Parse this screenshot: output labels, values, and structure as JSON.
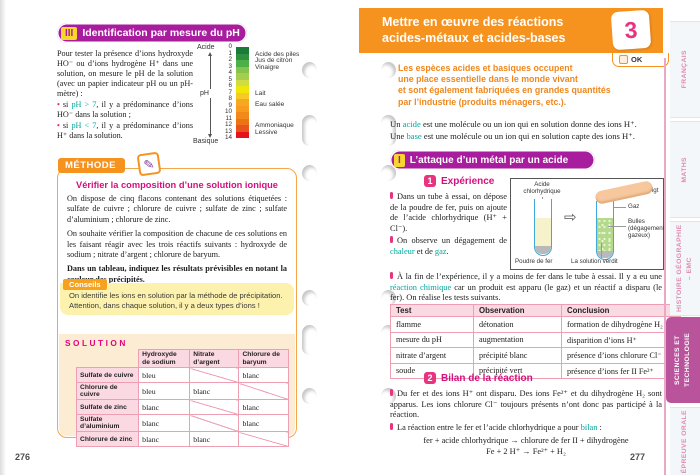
{
  "icons": {
    "transform_arrow": "⇨",
    "pencil": "✎"
  },
  "colors": {
    "accent_orange": "#f6921e",
    "accent_magenta": "#a81c9e",
    "accent_pink": "#e8337f",
    "accent_teal": "#00a79b",
    "tab_active": "#b9539b"
  },
  "tabs": [
    {
      "label": "FRANÇAIS",
      "active": false
    },
    {
      "label": "MATHS",
      "active": false
    },
    {
      "label": "HISTOIRE GÉOGRAPHIE – EMC",
      "active": false
    },
    {
      "label": "SCIENCES ET TECHNOLOGIE",
      "active": true
    },
    {
      "label": "ÉPREUVE ORALE",
      "active": false
    }
  ],
  "left_page": {
    "page_number": "276",
    "section": {
      "numeral": "III",
      "title": "Identification par mesure du pH"
    },
    "intro": {
      "para": [
        {
          "t": "Pour tester la présence d’ions hydroxyde HO⁻ ou d’ions hydrogène H⁺ dans une solution, on mesure le pH de la solution (avec un papier indicateur pH ou un pH-mètre) :"
        }
      ],
      "bullet1": [
        {
          "t": "si "
        },
        {
          "t": "pH > 7",
          "c": "teal"
        },
        {
          "t": ", il y a prédominance d’ions HO⁻ dans la solution ;"
        }
      ],
      "bullet2": [
        {
          "t": "si "
        },
        {
          "t": "pH < 7",
          "c": "teal"
        },
        {
          "t": ", il y a prédominance d’ions H⁺ dans la solution."
        }
      ]
    },
    "ph_scale": {
      "top_label": "Acide",
      "axis_label": "pH",
      "bottom_label": "Basique",
      "numbers": [
        "0",
        "1",
        "2",
        "3",
        "4",
        "5",
        "6",
        "7",
        "8",
        "9",
        "10",
        "11",
        "12",
        "13",
        "14"
      ],
      "segment_colors": [
        "#1a7a38",
        "#2f9140",
        "#4caf48",
        "#84c44c",
        "#a5ce4e",
        "#cfdc43",
        "#f1e60a",
        "#f8c924",
        "#f7a823",
        "#f79c1e",
        "#f28a1a",
        "#ee7315",
        "#e9531d",
        "#e4131c"
      ],
      "annotations": [
        {
          "at": 1,
          "label": "Acide des piles"
        },
        {
          "at": 2,
          "label": "Jus de citron"
        },
        {
          "at": 3,
          "label": "Vinaigre"
        },
        {
          "at": 7,
          "label": "Lait"
        },
        {
          "at": 8.8,
          "label": "Eau salée"
        },
        {
          "at": 12,
          "label": "Ammoniaque"
        },
        {
          "at": 13,
          "label": "Lessive"
        }
      ]
    },
    "methode": {
      "label": "MÉTHODE",
      "title": "Vérifier la composition d’une solution ionique",
      "para1": "On dispose de cinq flacons contenant des solutions étiquetées : sulfate de cuivre ; chlorure de cuivre ; sulfate de zinc ; sulfate d’aluminium ; chlorure de zinc.",
      "para2": "On souhaite vérifier la composition de chacune de ces solutions en les faisant réagir avec les trois réactifs suivants : hydroxyde de sodium ; nitrate d’argent ; chlorure de baryum.",
      "para3": "Dans un tableau, indiquez les résultats prévisibles en notant la couleur des précipités.",
      "conseils": {
        "label": "Conseils",
        "line1": "On identifie les ions en solution par la méthode de précipitation.",
        "line2": "Attention, dans chaque solution, il y a deux types d’ions !"
      },
      "solution": {
        "label": "SOLUTION",
        "columns": [
          "Hydroxyde de sodium",
          "Nitrate d’argent",
          "Chlorure de baryum"
        ],
        "rows": [
          {
            "label": "Sulfate de cuivre",
            "cells": [
              "bleu",
              null,
              "blanc"
            ]
          },
          {
            "label": "Chlorure de cuivre",
            "cells": [
              "bleu",
              "blanc",
              null
            ]
          },
          {
            "label": "Sulfate de zinc",
            "cells": [
              "blanc",
              null,
              "blanc"
            ]
          },
          {
            "label": "Sulfate d’aluminium",
            "cells": [
              "blanc",
              null,
              "blanc"
            ]
          },
          {
            "label": "Chlorure de zinc",
            "cells": [
              "blanc",
              "blanc",
              null
            ]
          }
        ]
      }
    }
  },
  "right_page": {
    "page_number": "277",
    "header": {
      "title_line1": "Mettre en œuvre des réactions",
      "title_line2": "acides-métaux et acides-bases",
      "lesson_number": "3",
      "ok_label": "OK"
    },
    "intro_lines": [
      "Les espèces acides et basiques occupent",
      "une place essentielle dans le monde vivant",
      "et sont également fabriquées en grandes quantités",
      "par l’industrie (produits ménagers, etc.)."
    ],
    "definitions": {
      "line1": [
        {
          "t": "Un "
        },
        {
          "t": "acide",
          "c": "teal"
        },
        {
          "t": " est une molécule ou un ion qui en solution donne des ions H⁺."
        }
      ],
      "line2": [
        {
          "t": "Une "
        },
        {
          "t": "base",
          "c": "teal"
        },
        {
          "t": " est une molécule ou un ion qui en solution capte des ions H⁺."
        }
      ]
    },
    "section1": {
      "numeral": "I",
      "title": "L’attaque d’un métal par un acide"
    },
    "experience": {
      "number": "1",
      "title": "Expérience",
      "bullet1": [
        {
          "t": "Dans un tube à essai, on dépose de la poudre de fer, puis on ajoute de l’acide chlorhydrique (H⁺ + Cl⁻)."
        }
      ],
      "bullet2": [
        {
          "t": "On observe un dégagement de "
        },
        {
          "t": "chaleur",
          "c": "teal"
        },
        {
          "t": " et de "
        },
        {
          "t": "gaz",
          "c": "teal"
        },
        {
          "t": "."
        }
      ],
      "bullet3": [
        {
          "t": "À la fin de l’expérience, il y a moins de fer dans le tube à essai. Il y a eu une "
        },
        {
          "t": "réaction chimique",
          "c": "teal"
        },
        {
          "t": " car un produit est apparu (le gaz) et un réactif a disparu (le fer). On réalise les tests suivants."
        }
      ]
    },
    "diagram": {
      "label_acid": "Acide chlorhydrique",
      "label_iron": "Poudre de fer",
      "label_finger": "Doigt",
      "label_gas": "Gaz",
      "label_bubbles": "Bulles (dégagement gazeux)",
      "label_green": "La solution verdit"
    },
    "tests_table": {
      "columns": [
        "Test",
        "Observation",
        "Conclusion"
      ],
      "rows": [
        [
          "flamme",
          "détonation",
          "formation de dihydrogène H₂"
        ],
        [
          "mesure du pH",
          "augmentation",
          "disparition d’ions H⁺"
        ],
        [
          "nitrate d’argent",
          "précipité blanc",
          "présence d’ions chlorure Cl⁻"
        ],
        [
          "soude",
          "précipité vert",
          "présence d’ions fer II Fe²⁺"
        ]
      ]
    },
    "bilan": {
      "number": "2",
      "title": "Bilan de la réaction",
      "bullet1": [
        {
          "t": "Du fer et des ions H⁺ ont disparu. Des ions Fe²⁺ et du dihydrogène H₂ sont apparus. Les ions chlorure Cl⁻ toujours présents n’ont donc pas participé à la réaction."
        }
      ],
      "bullet2": [
        {
          "t": "La réaction entre le fer et l’acide chlorhydrique a pour "
        },
        {
          "t": "bilan",
          "c": "teal"
        },
        {
          "t": " :"
        }
      ],
      "equation_words": "fer + acide chlorhydrique → chlorure de fer II + dihydrogène",
      "equation_symbols": "Fe + 2 H⁺ → Fe²⁺ + H₂"
    }
  }
}
